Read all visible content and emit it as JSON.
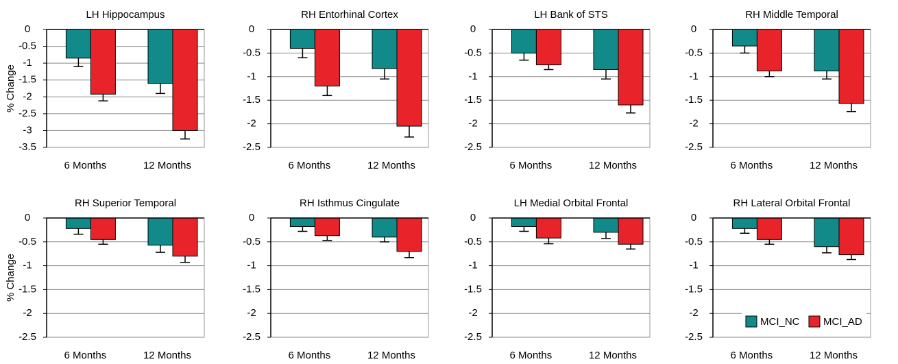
{
  "chart_data": [
    {
      "type": "bar",
      "title": "LH Hippocampus",
      "ylabel": "% Change",
      "categories": [
        "6 Months",
        "12 Months"
      ],
      "series": [
        {
          "color": "#138a8a",
          "values": [
            -0.85,
            -1.6
          ],
          "errors": [
            0.25,
            0.3
          ]
        },
        {
          "color": "#e8242a",
          "values": [
            -1.92,
            -3.0
          ],
          "errors": [
            0.2,
            0.25
          ]
        }
      ],
      "ylim": [
        -3.5,
        0
      ],
      "yticks": [
        0,
        -0.5,
        -1,
        -1.5,
        -2,
        -2.5,
        -3,
        -3.5
      ],
      "grid": true
    },
    {
      "type": "bar",
      "title": "RH Entorhinal Cortex",
      "categories": [
        "6 Months",
        "12 Months"
      ],
      "series": [
        {
          "color": "#138a8a",
          "values": [
            -0.4,
            -0.83
          ],
          "errors": [
            0.2,
            0.22
          ]
        },
        {
          "color": "#e8242a",
          "values": [
            -1.2,
            -2.05
          ],
          "errors": [
            0.2,
            0.23
          ]
        }
      ],
      "ylim": [
        -2.5,
        0
      ],
      "yticks": [
        0,
        -0.5,
        -1,
        -1.5,
        -2,
        -2.5
      ],
      "grid": true
    },
    {
      "type": "bar",
      "title": "LH Bank of STS",
      "categories": [
        "6 Months",
        "12 Months"
      ],
      "series": [
        {
          "color": "#138a8a",
          "values": [
            -0.5,
            -0.85
          ],
          "errors": [
            0.15,
            0.2
          ]
        },
        {
          "color": "#e8242a",
          "values": [
            -0.75,
            -1.6
          ],
          "errors": [
            0.1,
            0.17
          ]
        }
      ],
      "ylim": [
        -2.5,
        0
      ],
      "yticks": [
        0,
        -0.5,
        -1,
        -1.5,
        -2,
        -2.5
      ],
      "grid": true
    },
    {
      "type": "bar",
      "title": "RH Middle Temporal",
      "categories": [
        "6 Months",
        "12 Months"
      ],
      "series": [
        {
          "color": "#138a8a",
          "values": [
            -0.35,
            -0.88
          ],
          "errors": [
            0.15,
            0.17
          ]
        },
        {
          "color": "#e8242a",
          "values": [
            -0.88,
            -1.57
          ],
          "errors": [
            0.12,
            0.17
          ]
        }
      ],
      "ylim": [
        -2.5,
        0
      ],
      "yticks": [
        0,
        -0.5,
        -1,
        -1.5,
        -2,
        -2.5
      ],
      "grid": true
    },
    {
      "type": "bar",
      "title": "RH Superior Temporal",
      "ylabel": "% Change",
      "categories": [
        "6 Months",
        "12 Months"
      ],
      "series": [
        {
          "color": "#138a8a",
          "values": [
            -0.22,
            -0.57
          ],
          "errors": [
            0.12,
            0.15
          ]
        },
        {
          "color": "#e8242a",
          "values": [
            -0.45,
            -0.8
          ],
          "errors": [
            0.1,
            0.13
          ]
        }
      ],
      "ylim": [
        -2.5,
        0
      ],
      "yticks": [
        0,
        -0.5,
        -1,
        -1.5,
        -2,
        -2.5
      ],
      "grid": true
    },
    {
      "type": "bar",
      "title": "RH Isthmus Cingulate",
      "categories": [
        "6 Months",
        "12 Months"
      ],
      "series": [
        {
          "color": "#138a8a",
          "values": [
            -0.18,
            -0.4
          ],
          "errors": [
            0.1,
            0.1
          ]
        },
        {
          "color": "#e8242a",
          "values": [
            -0.37,
            -0.7
          ],
          "errors": [
            0.1,
            0.13
          ]
        }
      ],
      "ylim": [
        -2.5,
        0
      ],
      "yticks": [
        0,
        -0.5,
        -1,
        -1.5,
        -2,
        -2.5
      ],
      "grid": true
    },
    {
      "type": "bar",
      "title": "LH Medial Orbital Frontal",
      "categories": [
        "6 Months",
        "12 Months"
      ],
      "series": [
        {
          "color": "#138a8a",
          "values": [
            -0.18,
            -0.3
          ],
          "errors": [
            0.1,
            0.13
          ]
        },
        {
          "color": "#e8242a",
          "values": [
            -0.42,
            -0.55
          ],
          "errors": [
            0.12,
            0.1
          ]
        }
      ],
      "ylim": [
        -2.5,
        0
      ],
      "yticks": [
        0,
        -0.5,
        -1,
        -1.5,
        -2,
        -2.5
      ],
      "grid": true
    },
    {
      "type": "bar",
      "title": "RH Lateral Orbital Frontal",
      "categories": [
        "6 Months",
        "12 Months"
      ],
      "series": [
        {
          "name": "MCI_NC",
          "color": "#138a8a",
          "values": [
            -0.22,
            -0.6
          ],
          "errors": [
            0.1,
            0.13
          ]
        },
        {
          "name": "MCI_AD",
          "color": "#e8242a",
          "values": [
            -0.45,
            -0.77
          ],
          "errors": [
            0.1,
            0.1
          ]
        }
      ],
      "ylim": [
        -2.5,
        0
      ],
      "yticks": [
        0,
        -0.5,
        -1,
        -1.5,
        -2,
        -2.5
      ],
      "grid": true,
      "legend": "lower right"
    }
  ]
}
